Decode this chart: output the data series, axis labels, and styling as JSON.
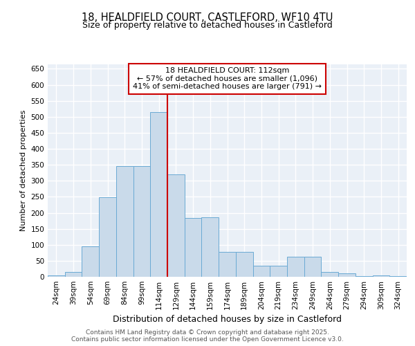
{
  "title_line1": "18, HEALDFIELD COURT, CASTLEFORD, WF10 4TU",
  "title_line2": "Size of property relative to detached houses in Castleford",
  "xlabel": "Distribution of detached houses by size in Castleford",
  "ylabel": "Number of detached properties",
  "categories": [
    "24sqm",
    "39sqm",
    "54sqm",
    "69sqm",
    "84sqm",
    "99sqm",
    "114sqm",
    "129sqm",
    "144sqm",
    "159sqm",
    "174sqm",
    "189sqm",
    "204sqm",
    "219sqm",
    "234sqm",
    "249sqm",
    "264sqm",
    "279sqm",
    "294sqm",
    "309sqm",
    "324sqm"
  ],
  "values": [
    5,
    15,
    95,
    248,
    345,
    345,
    515,
    320,
    183,
    185,
    78,
    78,
    35,
    35,
    63,
    63,
    15,
    10,
    3,
    5,
    3
  ],
  "bar_color": "#c9daea",
  "bar_edge_color": "#6aaad4",
  "vline_index": 6,
  "vline_color": "#cc0000",
  "annotation_text_line1": "18 HEALDFIELD COURT: 112sqm",
  "annotation_text_line2": "← 57% of detached houses are smaller (1,096)",
  "annotation_text_line3": "41% of semi-detached houses are larger (791) →",
  "annotation_box_color": "#cc0000",
  "ylim": [
    0,
    665
  ],
  "yticks": [
    0,
    50,
    100,
    150,
    200,
    250,
    300,
    350,
    400,
    450,
    500,
    550,
    600,
    650
  ],
  "background_color": "#eaf0f7",
  "grid_color": "#ffffff",
  "footer_text": "Contains HM Land Registry data © Crown copyright and database right 2025.\nContains public sector information licensed under the Open Government Licence v3.0.",
  "title_fontsize": 10.5,
  "subtitle_fontsize": 9.0,
  "ylabel_fontsize": 8.0,
  "xlabel_fontsize": 9.0,
  "tick_fontsize": 7.5,
  "annotation_fontsize": 8.0,
  "footer_fontsize": 6.5
}
